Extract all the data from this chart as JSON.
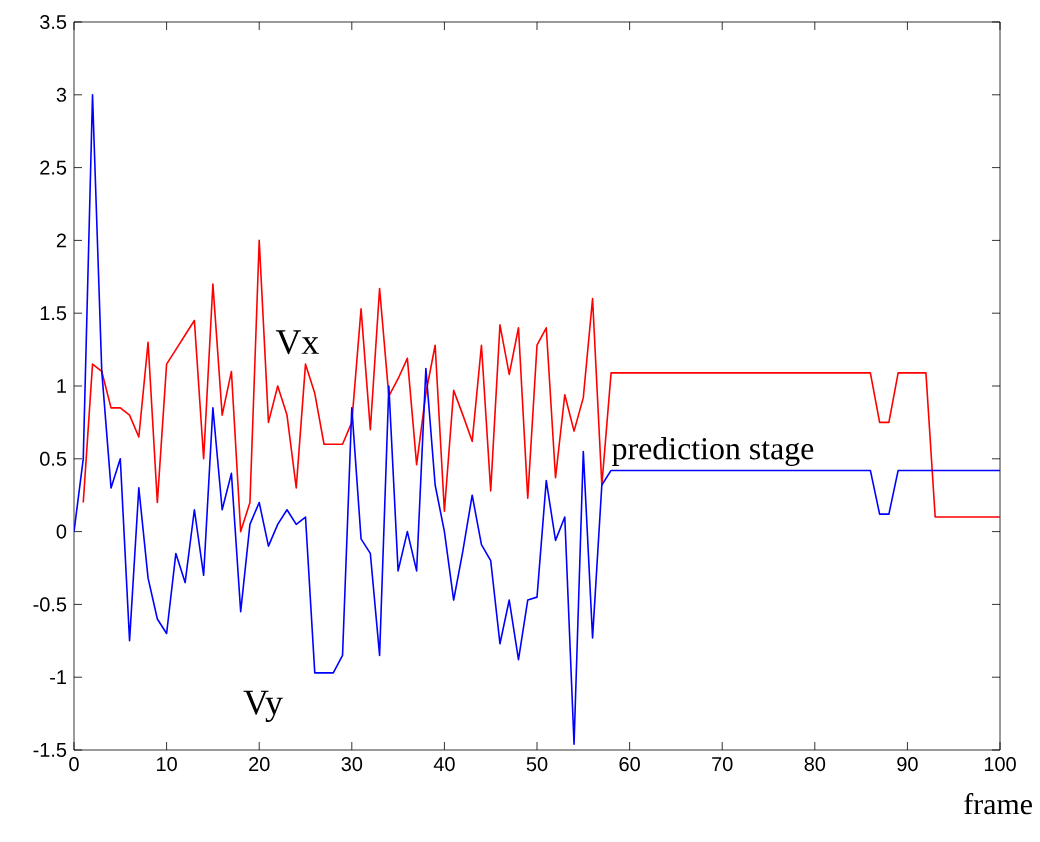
{
  "chart_data": {
    "type": "line",
    "xlabel": "frame",
    "xlim": [
      0,
      100
    ],
    "ylim": [
      -1.5,
      3.5
    ],
    "xticks": [
      0,
      10,
      20,
      30,
      40,
      50,
      60,
      70,
      80,
      90,
      100
    ],
    "yticks": [
      -1.5,
      -1,
      -0.5,
      0,
      0.5,
      1,
      1.5,
      2,
      2.5,
      3,
      3.5
    ],
    "grid": false,
    "marker": "none",
    "line_style": "solid",
    "annotations": [
      "prediction stage"
    ],
    "series": [
      {
        "name": "Vx",
        "color": "#ff0000",
        "x": [
          1,
          2,
          3,
          4,
          5,
          6,
          7,
          8,
          9,
          10,
          11,
          12,
          13,
          14,
          15,
          16,
          17,
          18,
          19,
          20,
          21,
          22,
          23,
          24,
          25,
          26,
          27,
          28,
          29,
          30,
          31,
          32,
          33,
          34,
          35,
          36,
          37,
          38,
          39,
          40,
          41,
          42,
          43,
          44,
          45,
          46,
          47,
          48,
          49,
          50,
          51,
          52,
          53,
          54,
          55,
          56,
          57,
          58,
          86,
          87,
          88,
          89,
          92,
          93,
          100
        ],
        "values": [
          0.2,
          1.15,
          1.1,
          0.85,
          0.85,
          0.8,
          0.65,
          1.3,
          0.2,
          1.15,
          1.25,
          1.35,
          1.45,
          0.5,
          1.7,
          0.8,
          1.1,
          0,
          0.2,
          2.0,
          0.75,
          1.0,
          0.8,
          0.3,
          1.15,
          0.95,
          0.6,
          0.6,
          0.6,
          0.75,
          1.53,
          0.7,
          1.67,
          0.93,
          1.05,
          1.19,
          0.46,
          0.95,
          1.28,
          0.14,
          0.97,
          0.8,
          0.62,
          1.28,
          0.28,
          1.42,
          1.08,
          1.4,
          0.23,
          1.28,
          1.4,
          0.37,
          0.94,
          0.69,
          0.92,
          1.6,
          0.32,
          1.09,
          1.09,
          0.75,
          0.75,
          1.09,
          1.09,
          0.1,
          0.1
        ]
      },
      {
        "name": "Vy",
        "color": "#0000ff",
        "x": [
          0,
          1,
          2,
          3,
          4,
          5,
          6,
          7,
          8,
          9,
          10,
          11,
          12,
          13,
          14,
          15,
          16,
          17,
          18,
          19,
          20,
          21,
          22,
          23,
          24,
          25,
          26,
          27,
          28,
          29,
          30,
          31,
          32,
          33,
          34,
          35,
          36,
          37,
          38,
          39,
          40,
          41,
          42,
          43,
          44,
          45,
          46,
          47,
          48,
          49,
          50,
          51,
          52,
          53,
          54,
          55,
          56,
          57,
          58,
          86,
          87,
          88,
          89,
          100
        ],
        "values": [
          0,
          0.5,
          3.0,
          1.1,
          0.3,
          0.5,
          -0.75,
          0.3,
          -0.32,
          -0.6,
          -0.7,
          -0.15,
          -0.35,
          0.15,
          -0.3,
          0.85,
          0.15,
          0.4,
          -0.55,
          0.05,
          0.2,
          -0.1,
          0.05,
          0.15,
          0.05,
          0.1,
          -0.97,
          -0.97,
          -0.97,
          -0.85,
          0.85,
          -0.05,
          -0.15,
          -0.85,
          1.0,
          -0.27,
          0.0,
          -0.27,
          1.12,
          0.32,
          0.0,
          -0.47,
          -0.13,
          0.25,
          -0.09,
          -0.2,
          -0.77,
          -0.47,
          -0.88,
          -0.47,
          -0.45,
          0.35,
          -0.06,
          0.1,
          -1.46,
          0.55,
          -0.73,
          0.32,
          0.42,
          0.42,
          0.12,
          0.12,
          0.42,
          0.42
        ]
      }
    ]
  }
}
